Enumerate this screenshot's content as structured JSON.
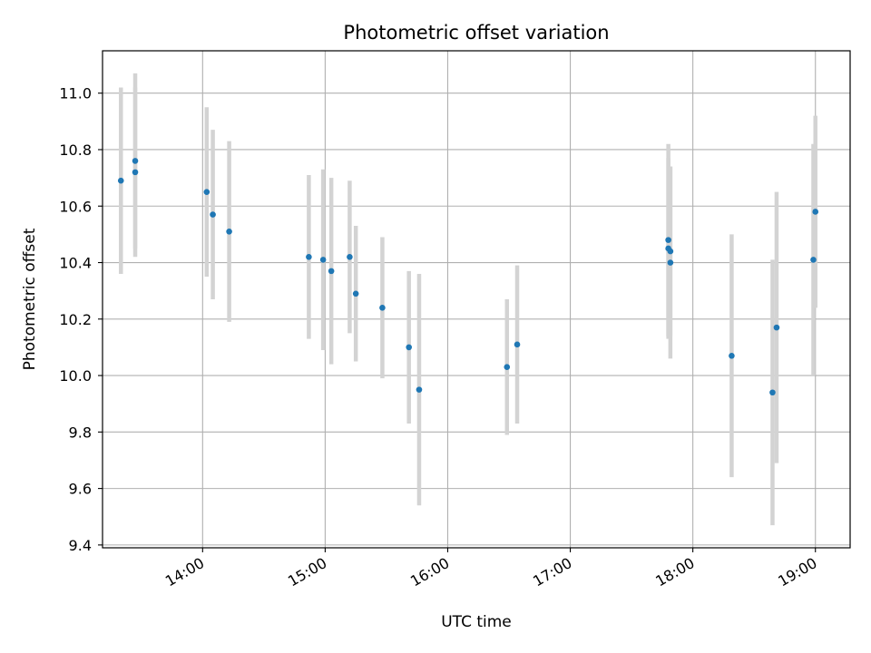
{
  "chart_data": {
    "type": "scatter",
    "title": "Photometric offset variation",
    "xlabel": "UTC time",
    "ylabel": "Photometric offset",
    "x_tick_labels": [
      "14:00",
      "15:00",
      "16:00",
      "17:00",
      "18:00",
      "19:00"
    ],
    "x_ticks": [
      "14:00",
      "15:00",
      "16:00",
      "17:00",
      "18:00",
      "19:00"
    ],
    "y_ticks": [
      9.4,
      9.6,
      9.8,
      10.0,
      10.2,
      10.4,
      10.6,
      10.8,
      11.0
    ],
    "y_tick_labels": [
      "9.4",
      "9.6",
      "9.8",
      "10.0",
      "10.2",
      "10.4",
      "10.6",
      "10.8",
      "11.0"
    ],
    "xlim": [
      "13:11",
      "19:17"
    ],
    "ylim": [
      9.39,
      11.15
    ],
    "grid": true,
    "series": [
      {
        "marker_color": "#1f77b4",
        "errorbar_color": "#d3d3d3",
        "points": [
          {
            "x": "13:20",
            "y": 10.69,
            "err": 0.33
          },
          {
            "x": "13:27",
            "y": 10.72,
            "err": 0.3
          },
          {
            "x": "13:27",
            "y": 10.76,
            "err": 0.31
          },
          {
            "x": "14:02",
            "y": 10.65,
            "err": 0.3
          },
          {
            "x": "14:05",
            "y": 10.57,
            "err": 0.3
          },
          {
            "x": "14:13",
            "y": 10.51,
            "err": 0.32
          },
          {
            "x": "14:52",
            "y": 10.42,
            "err": 0.29
          },
          {
            "x": "14:59",
            "y": 10.41,
            "err": 0.32
          },
          {
            "x": "15:03",
            "y": 10.37,
            "err": 0.33
          },
          {
            "x": "15:12",
            "y": 10.42,
            "err": 0.27
          },
          {
            "x": "15:15",
            "y": 10.29,
            "err": 0.24
          },
          {
            "x": "15:28",
            "y": 10.24,
            "err": 0.25
          },
          {
            "x": "15:41",
            "y": 10.1,
            "err": 0.27
          },
          {
            "x": "15:46",
            "y": 9.95,
            "err": 0.41
          },
          {
            "x": "16:29",
            "y": 10.03,
            "err": 0.24
          },
          {
            "x": "16:34",
            "y": 10.11,
            "err": 0.28
          },
          {
            "x": "17:48",
            "y": 10.48,
            "err": 0.34
          },
          {
            "x": "17:48",
            "y": 10.45,
            "err": 0.32
          },
          {
            "x": "17:49",
            "y": 10.44,
            "err": 0.3
          },
          {
            "x": "17:49",
            "y": 10.4,
            "err": 0.34
          },
          {
            "x": "18:19",
            "y": 10.07,
            "err": 0.43
          },
          {
            "x": "18:39",
            "y": 9.94,
            "err": 0.47
          },
          {
            "x": "18:41",
            "y": 10.17,
            "err": 0.48
          },
          {
            "x": "18:59",
            "y": 10.41,
            "err": 0.41
          },
          {
            "x": "19:00",
            "y": 10.58,
            "err": 0.34
          }
        ]
      }
    ]
  }
}
